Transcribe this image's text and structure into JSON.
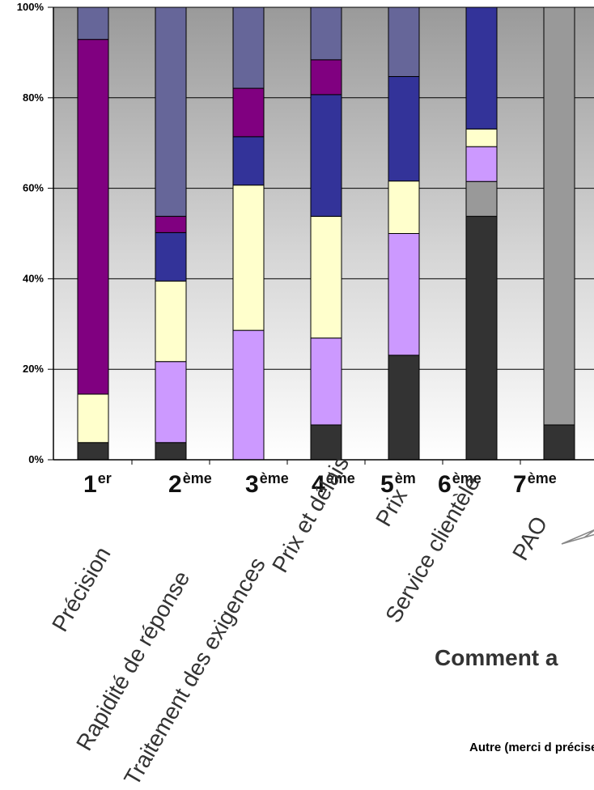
{
  "chart_data": {
    "type": "bar",
    "stacked": true,
    "percent_stacked": true,
    "ylim": [
      0,
      100
    ],
    "y_ticks": [
      "0%",
      "20%",
      "40%",
      "60%",
      "80%",
      "100%"
    ],
    "grid": true,
    "categories": [
      "Précision",
      "Rapidité de réponse",
      "Traitement des exigences",
      "Prix et délais",
      "Prix",
      "Service clientèle",
      "PAO"
    ],
    "ranks": [
      {
        "num": "1",
        "suffix": "er"
      },
      {
        "num": "2",
        "suffix": "ème"
      },
      {
        "num": "3",
        "suffix": "ème"
      },
      {
        "num": "4",
        "suffix": "ème"
      },
      {
        "num": "5",
        "suffix": "èm"
      },
      {
        "num": "6",
        "suffix": "ème"
      },
      {
        "num": "7",
        "suffix": "ème"
      }
    ],
    "series": [
      {
        "color": "#333333",
        "values": [
          3.8,
          3.8,
          0,
          7.7,
          23.1,
          53.8,
          7.7
        ]
      },
      {
        "color": "#999999",
        "values": [
          0,
          0,
          0,
          0,
          0,
          7.7,
          92.3
        ]
      },
      {
        "color": "#cc99ff",
        "values": [
          0,
          17.9,
          28.6,
          19.2,
          26.9,
          7.7,
          0
        ]
      },
      {
        "color": "#ffffcc",
        "values": [
          10.7,
          17.8,
          32.1,
          26.9,
          11.6,
          3.9,
          0
        ]
      },
      {
        "color": "#333399",
        "values": [
          0,
          10.7,
          10.7,
          26.9,
          23.1,
          26.9,
          0
        ]
      },
      {
        "color": "#800080",
        "values": [
          78.4,
          3.6,
          10.7,
          7.7,
          0,
          0,
          0
        ]
      },
      {
        "color": "#666699",
        "values": [
          7.1,
          46.2,
          17.9,
          11.6,
          15.3,
          0,
          0
        ]
      }
    ]
  },
  "question_text": "Comment a",
  "other_label": "Autre (merci d préciser) :"
}
